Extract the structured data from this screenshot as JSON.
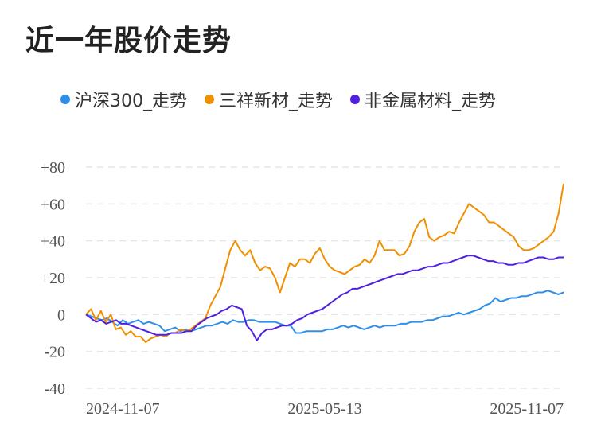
{
  "title": "近一年股价走势",
  "chart_data": {
    "type": "line",
    "x_ticks": [
      "2024-11-07",
      "2025-05-13",
      "2025-11-07"
    ],
    "y_ticks": [
      "+80",
      "+60",
      "+40",
      "+20",
      "0",
      "-20",
      "-40"
    ],
    "y_tick_values": [
      80,
      60,
      40,
      20,
      0,
      -20,
      -40
    ],
    "ylim": [
      -40,
      80
    ],
    "grid": true,
    "legend_position": "top",
    "series": [
      {
        "name": "沪深300_走势",
        "color": "#2f8fe8",
        "values": [
          0,
          -1,
          -2,
          -3,
          -2,
          -4,
          -6,
          -3,
          -5,
          -4,
          -3,
          -5,
          -4,
          -5,
          -6,
          -9,
          -8,
          -7,
          -9,
          -8,
          -9,
          -8,
          -7,
          -6,
          -6,
          -5,
          -4,
          -5,
          -3,
          -4,
          -4,
          -3,
          -3,
          -4,
          -4,
          -4,
          -4,
          -5,
          -6,
          -6,
          -10,
          -10,
          -9,
          -9,
          -9,
          -9,
          -8,
          -8,
          -7,
          -6,
          -7,
          -6,
          -7,
          -8,
          -7,
          -6,
          -7,
          -6,
          -6,
          -6,
          -5,
          -5,
          -4,
          -4,
          -4,
          -3,
          -3,
          -2,
          -1,
          -1,
          0,
          1,
          0,
          1,
          2,
          3,
          5,
          6,
          9,
          7,
          8,
          9,
          9,
          10,
          10,
          11,
          12,
          12,
          13,
          12,
          11,
          12
        ]
      },
      {
        "name": "三祥新材_走势",
        "color": "#f08f00",
        "values": [
          0,
          3,
          -3,
          2,
          -4,
          0,
          -8,
          -7,
          -11,
          -9,
          -12,
          -12,
          -15,
          -13,
          -12,
          -11,
          -12,
          -10,
          -10,
          -8,
          -9,
          -8,
          -6,
          -4,
          -2,
          5,
          10,
          15,
          25,
          35,
          40,
          35,
          32,
          35,
          28,
          24,
          26,
          25,
          20,
          12,
          20,
          28,
          26,
          30,
          30,
          28,
          33,
          36,
          30,
          26,
          24,
          23,
          22,
          24,
          26,
          27,
          30,
          28,
          32,
          40,
          35,
          35,
          35,
          32,
          33,
          37,
          45,
          50,
          52,
          42,
          40,
          42,
          43,
          45,
          44,
          50,
          55,
          60,
          58,
          56,
          54,
          50,
          50,
          48,
          46,
          44,
          42,
          37,
          35,
          35,
          36,
          38,
          40,
          42,
          45,
          55,
          71
        ]
      },
      {
        "name": "非金属材料_走势",
        "color": "#5020e0",
        "values": [
          0,
          -2,
          -4,
          -3,
          -5,
          -4,
          -3,
          -5,
          -5,
          -6,
          -7,
          -8,
          -9,
          -10,
          -11,
          -11,
          -11,
          -10,
          -10,
          -10,
          -9,
          -9,
          -6,
          -4,
          -2,
          -1,
          0,
          2,
          3,
          5,
          4,
          3,
          -6,
          -9,
          -14,
          -10,
          -8,
          -8,
          -7,
          -6,
          -6,
          -5,
          -3,
          -2,
          0,
          1,
          2,
          3,
          5,
          7,
          9,
          11,
          12,
          14,
          14,
          15,
          16,
          17,
          18,
          19,
          20,
          21,
          22,
          22,
          23,
          24,
          24,
          25,
          26,
          26,
          27,
          28,
          28,
          29,
          30,
          31,
          32,
          32,
          31,
          30,
          29,
          29,
          28,
          28,
          27,
          27,
          28,
          28,
          29,
          30,
          31,
          31,
          30,
          30,
          31,
          31
        ]
      }
    ]
  }
}
